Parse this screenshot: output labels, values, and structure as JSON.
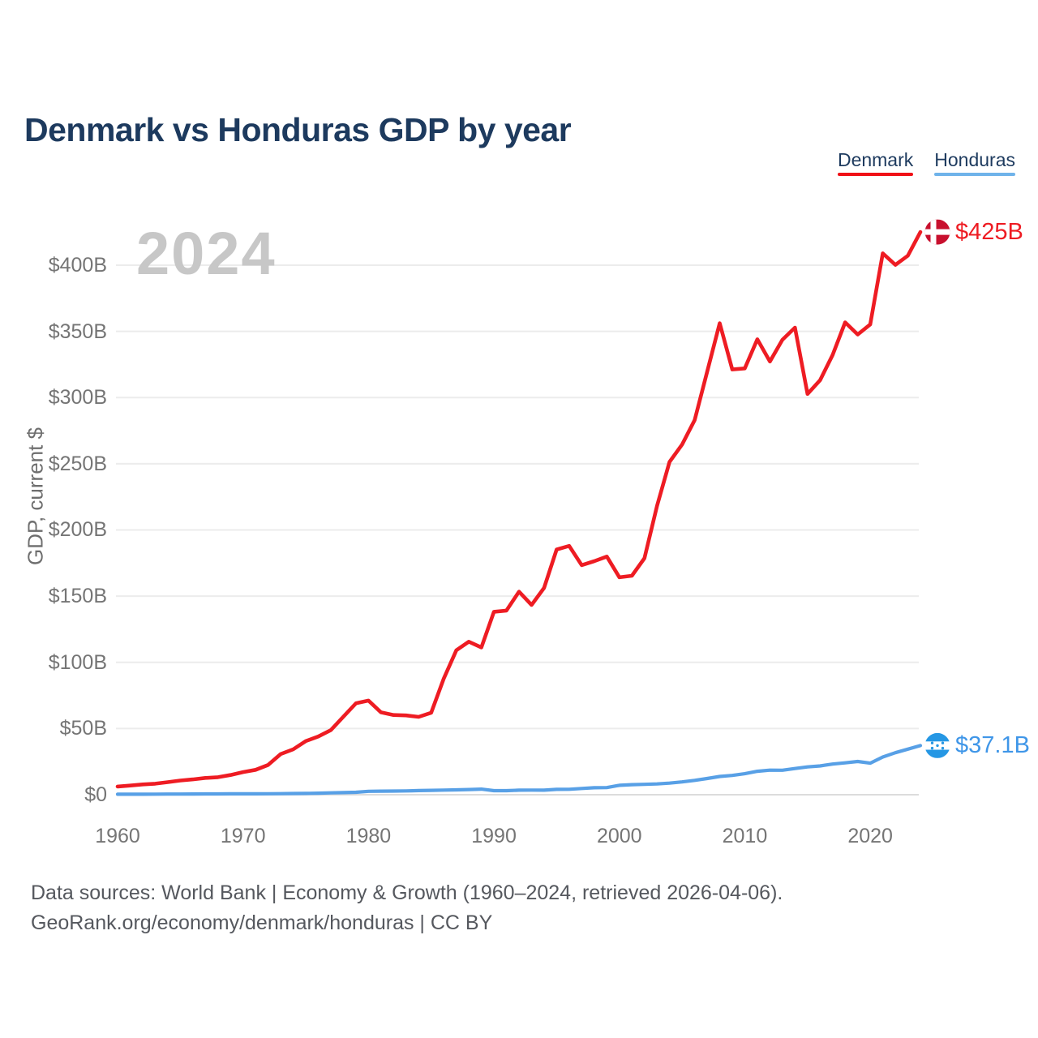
{
  "title": "Denmark vs Honduras GDP by year",
  "legend": [
    {
      "label": "Denmark",
      "color": "#f01016"
    },
    {
      "label": "Honduras",
      "color": "#6fb3ea"
    }
  ],
  "watermark": "2024",
  "footer": {
    "line1": "Data sources: World Bank | Economy & Growth (1960–2024, retrieved 2026-04-06).",
    "line2": "GeoRank.org/economy/denmark/honduras | CC BY"
  },
  "chart_data": {
    "type": "line",
    "title": "Denmark vs Honduras GDP by year",
    "xlabel": "",
    "ylabel": "GDP, current $",
    "x_range": [
      1960,
      2024
    ],
    "ylim": [
      0,
      425
    ],
    "grid": "horizontal",
    "legend_position": "top-right",
    "x": [
      1960,
      1961,
      1962,
      1963,
      1964,
      1965,
      1966,
      1967,
      1968,
      1969,
      1970,
      1971,
      1972,
      1973,
      1974,
      1975,
      1976,
      1977,
      1978,
      1979,
      1980,
      1981,
      1982,
      1983,
      1984,
      1985,
      1986,
      1987,
      1988,
      1989,
      1990,
      1991,
      1992,
      1993,
      1994,
      1995,
      1996,
      1997,
      1998,
      1999,
      2000,
      2001,
      2002,
      2003,
      2004,
      2005,
      2006,
      2007,
      2008,
      2009,
      2010,
      2011,
      2012,
      2013,
      2014,
      2015,
      2016,
      2017,
      2018,
      2019,
      2020,
      2021,
      2022,
      2023,
      2024
    ],
    "series": [
      {
        "name": "Denmark",
        "color": "#ee1c23",
        "label_color": "#ee1c23",
        "end_label": "$425B",
        "values": [
          6.2,
          6.9,
          7.8,
          8.3,
          9.5,
          10.7,
          11.6,
          12.7,
          13.2,
          14.9,
          17.1,
          18.8,
          22.5,
          30.7,
          34.3,
          40.5,
          44.0,
          48.8,
          58.9,
          69.0,
          71.1,
          62.2,
          60.2,
          59.9,
          58.8,
          61.9,
          87.7,
          109.1,
          115.6,
          111.2,
          138.2,
          139.1,
          153.4,
          143.3,
          156.2,
          185.2,
          187.9,
          173.4,
          176.4,
          179.9,
          164.2,
          165.4,
          178.6,
          218.1,
          251.4,
          264.5,
          282.9,
          319.4,
          356.1,
          321.2,
          322.0,
          344.0,
          327.2,
          343.6,
          352.8,
          302.7,
          313.1,
          332.1,
          356.8,
          347.6,
          355.2,
          408.9,
          400.2,
          407.1,
          425.0
        ]
      },
      {
        "name": "Honduras",
        "color": "#58a0e6",
        "label_color": "#3f96e8",
        "end_label": "$37.1B",
        "values": [
          0.34,
          0.36,
          0.39,
          0.41,
          0.46,
          0.51,
          0.55,
          0.6,
          0.64,
          0.67,
          0.65,
          0.68,
          0.73,
          0.82,
          0.91,
          1.0,
          1.16,
          1.4,
          1.6,
          1.84,
          2.57,
          2.69,
          2.77,
          2.85,
          3.1,
          3.3,
          3.5,
          3.7,
          3.9,
          4.2,
          3.05,
          3.07,
          3.42,
          3.5,
          3.43,
          4.07,
          4.12,
          4.72,
          5.25,
          5.41,
          7.1,
          7.57,
          7.81,
          8.14,
          8.77,
          9.67,
          10.84,
          12.28,
          13.79,
          14.59,
          15.84,
          17.73,
          18.53,
          18.5,
          19.76,
          20.98,
          21.72,
          23.14,
          24.07,
          25.1,
          23.83,
          28.49,
          31.72,
          34.4,
          37.1
        ]
      }
    ],
    "y_ticks": [
      {
        "label": "$0",
        "value": 0
      },
      {
        "label": "$50B",
        "value": 50
      },
      {
        "label": "$100B",
        "value": 100
      },
      {
        "label": "$150B",
        "value": 150
      },
      {
        "label": "$200B",
        "value": 200
      },
      {
        "label": "$250B",
        "value": 250
      },
      {
        "label": "$300B",
        "value": 300
      },
      {
        "label": "$350B",
        "value": 350
      },
      {
        "label": "$400B",
        "value": 400
      }
    ],
    "x_ticks": [
      {
        "label": "1960",
        "value": 1960
      },
      {
        "label": "1970",
        "value": 1970
      },
      {
        "label": "1980",
        "value": 1980
      },
      {
        "label": "1990",
        "value": 1990
      },
      {
        "label": "2000",
        "value": 2000
      },
      {
        "label": "2010",
        "value": 2010
      },
      {
        "label": "2020",
        "value": 2020
      }
    ]
  }
}
